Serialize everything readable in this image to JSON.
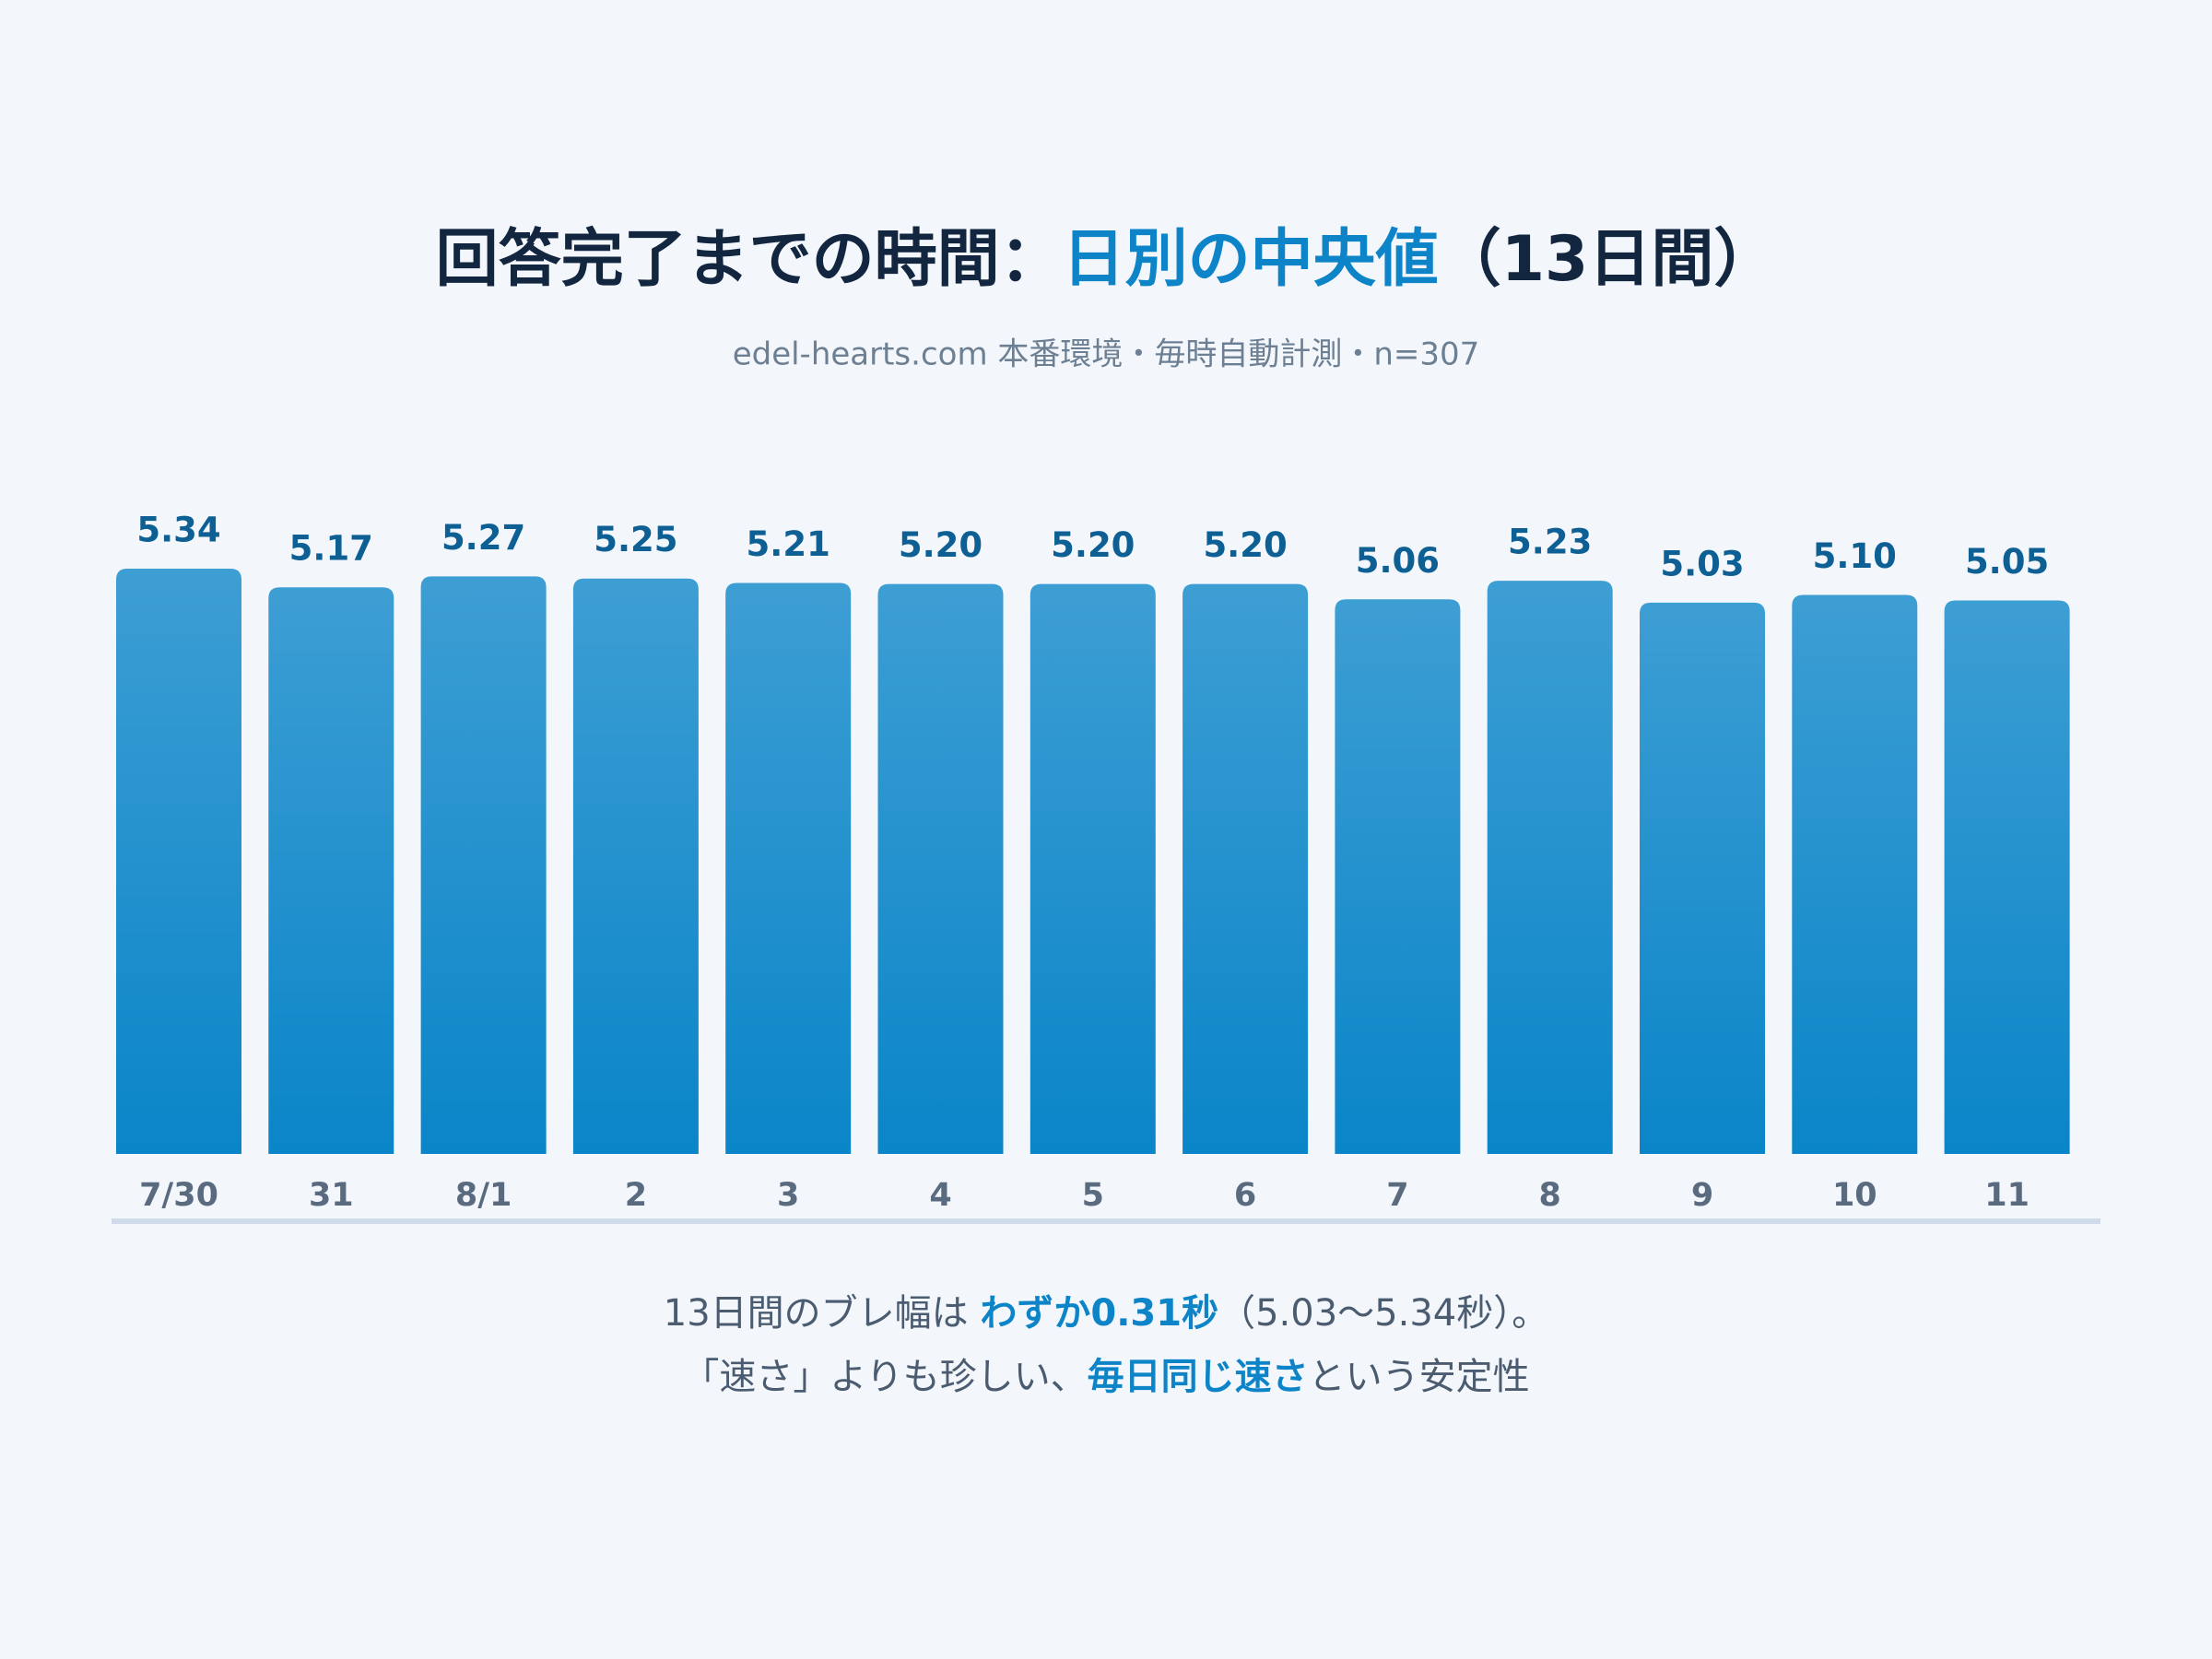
{
  "chart_data": {
    "type": "bar",
    "title": [
      "回答完了までの時間：",
      "日別の中央値",
      "（13日間）"
    ],
    "subtitle": "edel-hearts.com 本番環境・毎時自動計測・n=307",
    "categories": [
      "7/30",
      "31",
      "8/1",
      "2",
      "3",
      "4",
      "5",
      "6",
      "7",
      "8",
      "9",
      "10",
      "11"
    ],
    "values": [
      5.34,
      5.17,
      5.27,
      5.25,
      5.21,
      5.2,
      5.2,
      5.2,
      5.06,
      5.23,
      5.03,
      5.1,
      5.05
    ],
    "value_labels": [
      "5.34",
      "5.17",
      "5.27",
      "5.25",
      "5.21",
      "5.20",
      "5.20",
      "5.20",
      "5.06",
      "5.23",
      "5.03",
      "5.10",
      "5.05"
    ],
    "color": "#0a85c8",
    "ylim": [
      0,
      5.34
    ],
    "caption": [
      [
        "13日間のブレ幅は ",
        "わずか0.31秒",
        "（5.03〜5.34秒）。"
      ],
      [
        "「速さ」よりも珍しい、",
        "毎日同じ速さ",
        "という安定性"
      ]
    ]
  }
}
